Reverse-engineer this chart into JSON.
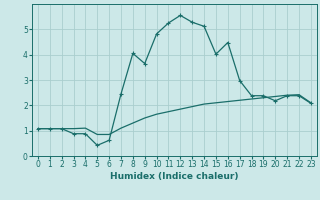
{
  "xlabel": "Humidex (Indice chaleur)",
  "ylabel": "",
  "background_color": "#cce8e8",
  "grid_color": "#aacece",
  "line_color": "#1a6e6a",
  "xlim": [
    -0.5,
    23.5
  ],
  "ylim": [
    0,
    6
  ],
  "xticks": [
    0,
    1,
    2,
    3,
    4,
    5,
    6,
    7,
    8,
    9,
    10,
    11,
    12,
    13,
    14,
    15,
    16,
    17,
    18,
    19,
    20,
    21,
    22,
    23
  ],
  "yticks": [
    0,
    1,
    2,
    3,
    4,
    5
  ],
  "curve1_x": [
    0,
    1,
    2,
    3,
    4,
    5,
    6,
    7,
    8,
    9,
    10,
    11,
    12,
    13,
    14,
    15,
    16,
    17,
    18,
    19,
    20,
    21,
    22,
    23
  ],
  "curve1_y": [
    1.08,
    1.08,
    1.08,
    1.08,
    1.1,
    0.85,
    0.85,
    1.1,
    1.3,
    1.5,
    1.65,
    1.75,
    1.85,
    1.95,
    2.05,
    2.1,
    2.15,
    2.2,
    2.25,
    2.3,
    2.35,
    2.4,
    2.42,
    2.1
  ],
  "curve2_x": [
    0,
    1,
    2,
    3,
    4,
    5,
    6,
    7,
    8,
    9,
    10,
    11,
    12,
    13,
    14,
    15,
    16,
    17,
    18,
    19,
    20,
    21,
    22,
    23
  ],
  "curve2_y": [
    1.08,
    1.08,
    1.08,
    0.88,
    0.88,
    0.42,
    0.62,
    2.45,
    4.05,
    3.65,
    4.82,
    5.25,
    5.55,
    5.28,
    5.12,
    4.02,
    4.48,
    2.98,
    2.38,
    2.38,
    2.18,
    2.38,
    2.38,
    2.08
  ],
  "tick_fontsize": 5.5,
  "xlabel_fontsize": 6.5
}
